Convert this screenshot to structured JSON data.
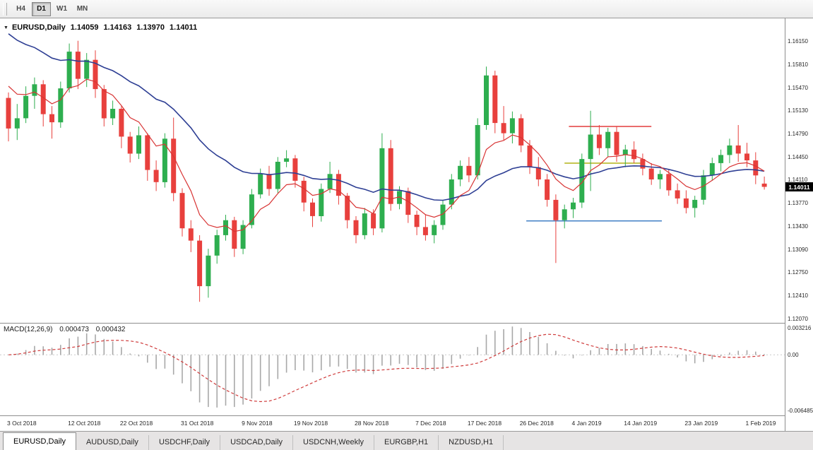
{
  "toolbar": {
    "buttons": [
      {
        "label": "H4",
        "active": false
      },
      {
        "label": "D1",
        "active": true
      },
      {
        "label": "W1",
        "active": false
      },
      {
        "label": "MN",
        "active": false
      }
    ]
  },
  "icons": {
    "symbol_marker": "▼"
  },
  "chart": {
    "title": {
      "symbol": "EURUSD,Daily",
      "open": "1.14059",
      "high": "1.14163",
      "low": "1.13970",
      "close": "1.14011"
    },
    "price_axis": {
      "ticks": [
        "1.16150",
        "1.15810",
        "1.15470",
        "1.15130",
        "1.14790",
        "1.14450",
        "1.14110",
        "1.13770",
        "1.13430",
        "1.13090",
        "1.12750",
        "1.12410",
        "1.12070"
      ],
      "current_price": "1.14011"
    },
    "time_axis": {
      "labels": [
        {
          "i": 0,
          "text": "3 Oct 2018"
        },
        {
          "i": 7,
          "text": "12 Oct 2018"
        },
        {
          "i": 13,
          "text": "22 Oct 2018"
        },
        {
          "i": 20,
          "text": "31 Oct 2018"
        },
        {
          "i": 27,
          "text": "9 Nov 2018"
        },
        {
          "i": 33,
          "text": "19 Nov 2018"
        },
        {
          "i": 40,
          "text": "28 Nov 2018"
        },
        {
          "i": 47,
          "text": "7 Dec 2018"
        },
        {
          "i": 53,
          "text": "17 Dec 2018"
        },
        {
          "i": 59,
          "text": "26 Dec 2018"
        },
        {
          "i": 65,
          "text": "4 Jan 2019"
        },
        {
          "i": 71,
          "text": "14 Jan 2019"
        },
        {
          "i": 78,
          "text": "23 Jan 2019"
        },
        {
          "i": 85,
          "text": "1 Feb 2019"
        }
      ]
    },
    "macd_axis": {
      "max": "0.003216",
      "zero": "0.00",
      "min": "-0.006485"
    },
    "macd_legend": {
      "name": "MACD(12,26,9)",
      "value1": "0.000473",
      "value2": "0.000432"
    }
  },
  "tabs": [
    {
      "label": "EURUSD,Daily",
      "active": true
    },
    {
      "label": "AUDUSD,Daily",
      "active": false
    },
    {
      "label": "USDCHF,Daily",
      "active": false
    },
    {
      "label": "USDCAD,Daily",
      "active": false
    },
    {
      "label": "USDCNH,Weekly",
      "active": false
    },
    {
      "label": "EURGBP,H1",
      "active": false
    },
    {
      "label": "NZDUSD,H1",
      "active": false
    }
  ],
  "chart_data": {
    "type": "candlestick",
    "symbol": "EURUSD",
    "timeframe": "Daily",
    "price_range": [
      1.1201,
      1.1649
    ],
    "macd_range": [
      -0.006,
      0.0031
    ],
    "colors": {
      "up": "#2eae4f",
      "down": "#e8403d",
      "ma_fast": "#d83434",
      "ma_slow": "#2e3f94",
      "macd_bar": "#a8a8a8",
      "macd_signal": "#cf3b3b"
    },
    "indicators": {
      "ma_fast": {
        "type": "ema",
        "period": 7,
        "seed": 1.157
      },
      "ma_slow": {
        "type": "ema",
        "period": 25,
        "seed": 1.1638
      },
      "macd": {
        "fast": 12,
        "slow": 26,
        "signal": 9
      }
    },
    "hlines": [
      {
        "price": 1.149,
        "i1": 64.5,
        "i2": 74,
        "color": "#e23c3c"
      },
      {
        "price": 1.1436,
        "i1": 64,
        "i2": 73.2,
        "color": "#b9b929"
      },
      {
        "price": 1.1351,
        "i1": 59.6,
        "i2": 75.2,
        "color": "#4a86c8"
      }
    ],
    "candles": [
      [
        1.1532,
        1.154,
        1.1468,
        1.1487
      ],
      [
        1.1487,
        1.1523,
        1.147,
        1.1502
      ],
      [
        1.1502,
        1.1549,
        1.1495,
        1.1535
      ],
      [
        1.1535,
        1.1562,
        1.1516,
        1.1552
      ],
      [
        1.1552,
        1.1558,
        1.149,
        1.1508
      ],
      [
        1.1508,
        1.152,
        1.1472,
        1.1496
      ],
      [
        1.1496,
        1.1556,
        1.1488,
        1.1546
      ],
      [
        1.1546,
        1.1612,
        1.154,
        1.16
      ],
      [
        1.16,
        1.1616,
        1.1545,
        1.156
      ],
      [
        1.156,
        1.1598,
        1.1548,
        1.1588
      ],
      [
        1.1588,
        1.1602,
        1.1532,
        1.1545
      ],
      [
        1.1545,
        1.1551,
        1.149,
        1.1502
      ],
      [
        1.1502,
        1.1528,
        1.1492,
        1.1516
      ],
      [
        1.1516,
        1.152,
        1.1458,
        1.1475
      ],
      [
        1.1475,
        1.1482,
        1.1437,
        1.145
      ],
      [
        1.145,
        1.149,
        1.1442,
        1.1477
      ],
      [
        1.1477,
        1.148,
        1.141,
        1.1426
      ],
      [
        1.1426,
        1.144,
        1.1395,
        1.1408
      ],
      [
        1.1408,
        1.148,
        1.14,
        1.1472
      ],
      [
        1.1472,
        1.1503,
        1.138,
        1.1392
      ],
      [
        1.1392,
        1.1399,
        1.1328,
        1.134
      ],
      [
        1.134,
        1.1352,
        1.1305,
        1.1322
      ],
      [
        1.1322,
        1.133,
        1.1232,
        1.1255
      ],
      [
        1.1255,
        1.131,
        1.1238,
        1.13
      ],
      [
        1.13,
        1.1338,
        1.1288,
        1.133
      ],
      [
        1.133,
        1.136,
        1.1322,
        1.1352
      ],
      [
        1.1352,
        1.1357,
        1.1298,
        1.131
      ],
      [
        1.131,
        1.1352,
        1.1302,
        1.1345
      ],
      [
        1.1345,
        1.1398,
        1.134,
        1.139
      ],
      [
        1.139,
        1.1428,
        1.1384,
        1.142
      ],
      [
        1.142,
        1.1432,
        1.1388,
        1.1398
      ],
      [
        1.1398,
        1.1445,
        1.1392,
        1.1438
      ],
      [
        1.1438,
        1.1455,
        1.143,
        1.1443
      ],
      [
        1.1443,
        1.1448,
        1.14,
        1.141
      ],
      [
        1.141,
        1.1416,
        1.1365,
        1.1378
      ],
      [
        1.1378,
        1.1384,
        1.1342,
        1.1358
      ],
      [
        1.1358,
        1.1406,
        1.135,
        1.1398
      ],
      [
        1.1398,
        1.1438,
        1.1392,
        1.142
      ],
      [
        1.142,
        1.1426,
        1.1375,
        1.1388
      ],
      [
        1.1388,
        1.1392,
        1.134,
        1.1352
      ],
      [
        1.1352,
        1.1358,
        1.1318,
        1.133
      ],
      [
        1.133,
        1.137,
        1.1324,
        1.1362
      ],
      [
        1.1362,
        1.1368,
        1.133,
        1.134
      ],
      [
        1.134,
        1.148,
        1.1334,
        1.1458
      ],
      [
        1.1458,
        1.147,
        1.1366,
        1.1376
      ],
      [
        1.1376,
        1.1402,
        1.1368,
        1.1395
      ],
      [
        1.1395,
        1.14,
        1.1348,
        1.136
      ],
      [
        1.136,
        1.1366,
        1.133,
        1.1342
      ],
      [
        1.1342,
        1.136,
        1.1322,
        1.133
      ],
      [
        1.133,
        1.1352,
        1.1318,
        1.1345
      ],
      [
        1.1345,
        1.1382,
        1.1338,
        1.1375
      ],
      [
        1.1375,
        1.142,
        1.1368,
        1.1412
      ],
      [
        1.1412,
        1.144,
        1.1402,
        1.1432
      ],
      [
        1.1432,
        1.1445,
        1.1408,
        1.1418
      ],
      [
        1.1418,
        1.1502,
        1.1412,
        1.1492
      ],
      [
        1.1492,
        1.1578,
        1.1485,
        1.1565
      ],
      [
        1.1565,
        1.1572,
        1.148,
        1.1495
      ],
      [
        1.1495,
        1.152,
        1.147,
        1.148
      ],
      [
        1.148,
        1.1512,
        1.1465,
        1.1502
      ],
      [
        1.1502,
        1.1508,
        1.1452,
        1.1462
      ],
      [
        1.1462,
        1.147,
        1.142,
        1.143
      ],
      [
        1.143,
        1.1445,
        1.1402,
        1.1412
      ],
      [
        1.1412,
        1.142,
        1.1372,
        1.1382
      ],
      [
        1.1382,
        1.139,
        1.1289,
        1.1352
      ],
      [
        1.1352,
        1.1375,
        1.134,
        1.1368
      ],
      [
        1.1368,
        1.1385,
        1.1355,
        1.1378
      ],
      [
        1.1378,
        1.145,
        1.137,
        1.1442
      ],
      [
        1.1442,
        1.1513,
        1.1395,
        1.1478
      ],
      [
        1.1478,
        1.1492,
        1.1448,
        1.1458
      ],
      [
        1.1458,
        1.1488,
        1.1445,
        1.1482
      ],
      [
        1.1482,
        1.149,
        1.1438,
        1.1448
      ],
      [
        1.1448,
        1.1463,
        1.143,
        1.1456
      ],
      [
        1.1456,
        1.1468,
        1.1436,
        1.1442
      ],
      [
        1.1442,
        1.145,
        1.1418,
        1.1428
      ],
      [
        1.1428,
        1.1436,
        1.1404,
        1.1412
      ],
      [
        1.1412,
        1.1426,
        1.1398,
        1.142
      ],
      [
        1.142,
        1.1426,
        1.1388,
        1.1396
      ],
      [
        1.1396,
        1.1406,
        1.1376,
        1.1384
      ],
      [
        1.1384,
        1.1396,
        1.1362,
        1.137
      ],
      [
        1.137,
        1.1388,
        1.1356,
        1.1382
      ],
      [
        1.1382,
        1.1426,
        1.1375,
        1.1418
      ],
      [
        1.1418,
        1.1444,
        1.141,
        1.1436
      ],
      [
        1.1436,
        1.1456,
        1.1424,
        1.1448
      ],
      [
        1.1448,
        1.1472,
        1.1436,
        1.1462
      ],
      [
        1.1462,
        1.1492,
        1.1438,
        1.145
      ],
      [
        1.145,
        1.1466,
        1.143,
        1.144
      ],
      [
        1.144,
        1.1452,
        1.1405,
        1.1418
      ],
      [
        1.14059,
        1.14163,
        1.1397,
        1.14011
      ]
    ]
  }
}
